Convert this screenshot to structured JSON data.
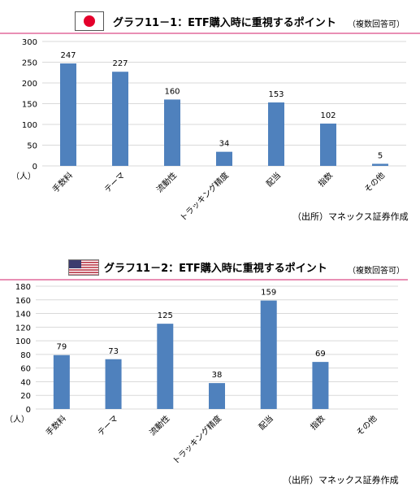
{
  "charts": [
    {
      "flag": "japan-flag",
      "title": "グラフ11－1：ETF購入時に重視するポイント",
      "note": "（複数回答可）",
      "source": "（出所）マネックス証券作成",
      "unit": "（人）"
    },
    {
      "flag": "usa-flag",
      "title": "グラフ11－2：ETF購入時に重視するポイント",
      "note": "（複数回答可）",
      "source": "（出所）マネックス証券作成",
      "unit": "（人）"
    }
  ],
  "chart_data": [
    {
      "type": "bar",
      "title": "グラフ11－1：ETF購入時に重視するポイント",
      "categories": [
        "手数料",
        "テーマ",
        "流動性",
        "トラッキング精度",
        "配当",
        "指数",
        "その他"
      ],
      "values": [
        247,
        227,
        160,
        34,
        153,
        102,
        5
      ],
      "ylabel": "（人）",
      "ylim": [
        0,
        300
      ],
      "yticks": [
        0,
        50,
        100,
        150,
        200,
        250,
        300
      ],
      "grid": true,
      "bar_color": "#4f81bd"
    },
    {
      "type": "bar",
      "title": "グラフ11－2：ETF購入時に重視するポイント",
      "categories": [
        "手数料",
        "テーマ",
        "流動性",
        "トラッキング精度",
        "配当",
        "指数",
        "その他"
      ],
      "values": [
        79,
        73,
        125,
        38,
        159,
        69,
        null
      ],
      "ylabel": "（人）",
      "ylim": [
        0,
        180
      ],
      "yticks": [
        0,
        20,
        40,
        60,
        80,
        100,
        120,
        140,
        160,
        180
      ],
      "grid": true,
      "bar_color": "#4f81bd"
    }
  ]
}
